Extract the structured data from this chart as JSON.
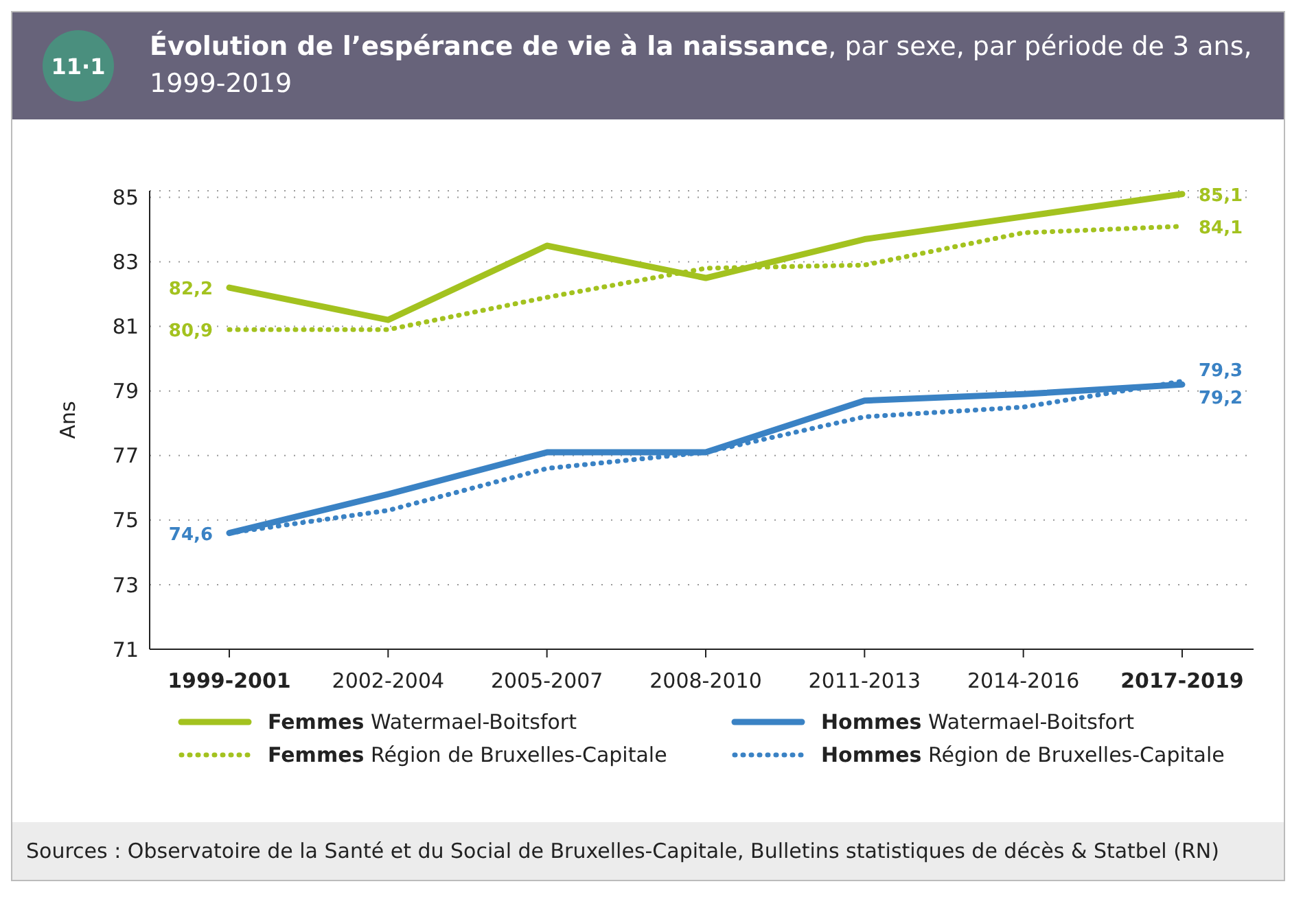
{
  "chart_data": {
    "type": "line",
    "title": "Évolution de l’espérance de vie à la naissance",
    "subtitle": ", par sexe, par période de 3 ans, 1999-2019",
    "ylabel": "Ans",
    "categories": [
      "1999-2001",
      "2002-2004",
      "2005-2007",
      "2008-2010",
      "2011-2013",
      "2014-2016",
      "2017-2019"
    ],
    "series": [
      {
        "name": "Femmes Watermael-Boitsfort",
        "color": "#a3c21f",
        "line_style": "solid",
        "values": [
          82.2,
          81.2,
          83.5,
          82.5,
          83.7,
          84.4,
          85.1
        ],
        "value_labels": [
          "82,2",
          null,
          null,
          null,
          null,
          null,
          "85,1"
        ]
      },
      {
        "name": "Femmes Région de Bruxelles-Capitale",
        "color": "#a3c21f",
        "line_style": "dotted",
        "values": [
          80.9,
          80.9,
          81.9,
          82.8,
          82.9,
          83.9,
          84.1
        ],
        "value_labels": [
          "80,9",
          null,
          null,
          null,
          null,
          null,
          "84,1"
        ]
      },
      {
        "name": "Hommes Watermael-Boitsfort",
        "color": "#3a82c4",
        "line_style": "solid",
        "values": [
          74.6,
          75.8,
          77.1,
          77.1,
          78.7,
          78.9,
          79.2
        ],
        "value_labels": [
          "74,6",
          null,
          null,
          null,
          null,
          null,
          "79,2"
        ]
      },
      {
        "name": "Hommes Région de Bruxelles-Capitale",
        "color": "#3a82c4",
        "line_style": "dotted",
        "values": [
          74.6,
          75.3,
          76.6,
          77.1,
          78.2,
          78.5,
          79.3
        ],
        "value_labels": [
          null,
          null,
          null,
          null,
          null,
          null,
          "79,3"
        ]
      }
    ],
    "ylim": [
      71,
      85.2
    ],
    "yticks": [
      71,
      73,
      75,
      77,
      79,
      81,
      83,
      85
    ],
    "grid": "y",
    "legend": "bottom",
    "marker": "none",
    "annotations": [
      "11·1",
      "Sources : Observatoire de la Santé et du Social de Bruxelles-Capitale, Bulletins statistiques de décès & Statbel (RN)"
    ]
  }
}
